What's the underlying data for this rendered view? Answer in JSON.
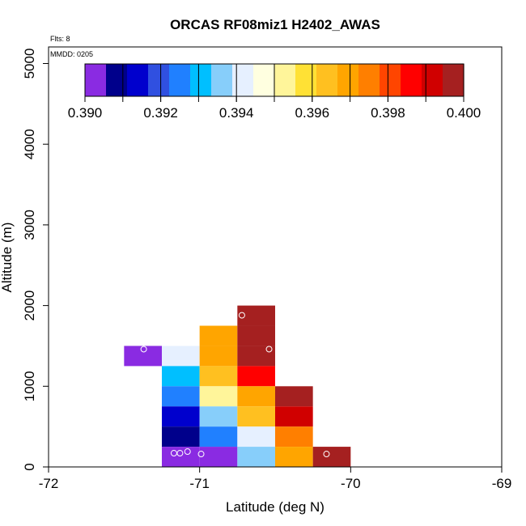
{
  "chart_data": {
    "type": "heatmap",
    "title": "ORCAS RF08miz1 H2402_AWAS",
    "annotation_flts": "Flts: 8",
    "annotation_mmdd": "MMDD: 0205",
    "xlabel": "Latitude (deg N)",
    "ylabel": "Altitude (m)",
    "xlim": [
      -72,
      -69
    ],
    "ylim": [
      0,
      5200
    ],
    "x_ticks": [
      -72,
      -71,
      -70,
      -69
    ],
    "x_tick_labels": [
      "-72",
      "-71",
      "-70",
      "-69"
    ],
    "y_ticks": [
      0,
      1000,
      2000,
      3000,
      4000,
      5000
    ],
    "y_tick_labels": [
      "0",
      "1000",
      "2000",
      "3000",
      "4000",
      "5000"
    ],
    "colorbar": {
      "min": 0.39,
      "max": 0.4,
      "tick_values": [
        0.39,
        0.392,
        0.394,
        0.396,
        0.398,
        0.4
      ],
      "tick_labels": [
        "0.390",
        "0.392",
        "0.394",
        "0.396",
        "0.398",
        "0.400"
      ],
      "colors": [
        "#8A2BE2",
        "#00008B",
        "#0000CD",
        "#3050E0",
        "#2080FF",
        "#00BFFF",
        "#87CEFA",
        "#E6F0FF",
        "#FFFFE0",
        "#FFF59A",
        "#FFE135",
        "#FFC020",
        "#FFA500",
        "#FF7F00",
        "#FF4500",
        "#FF0000",
        "#D00000",
        "#A52020"
      ]
    },
    "cell_width_deg": 0.25,
    "cell_height_m": 250,
    "cells": [
      {
        "lat": -71.5,
        "alt": 1250,
        "value": 0.3903
      },
      {
        "lat": -71.25,
        "alt": 1250,
        "value": 0.3939
      },
      {
        "lat": -71.25,
        "alt": 1000,
        "value": 0.3931
      },
      {
        "lat": -71.25,
        "alt": 750,
        "value": 0.3924
      },
      {
        "lat": -71.25,
        "alt": 500,
        "value": 0.3914
      },
      {
        "lat": -71.25,
        "alt": 250,
        "value": 0.3907
      },
      {
        "lat": -71.25,
        "alt": 0,
        "value": 0.3903
      },
      {
        "lat": -71.0,
        "alt": 1500,
        "value": 0.3967
      },
      {
        "lat": -71.0,
        "alt": 1250,
        "value": 0.3967
      },
      {
        "lat": -71.0,
        "alt": 1000,
        "value": 0.3962
      },
      {
        "lat": -71.0,
        "alt": 750,
        "value": 0.3953
      },
      {
        "lat": -71.0,
        "alt": 500,
        "value": 0.3938
      },
      {
        "lat": -71.0,
        "alt": 250,
        "value": 0.3924
      },
      {
        "lat": -71.0,
        "alt": 0,
        "value": 0.3903
      },
      {
        "lat": -70.75,
        "alt": 1750,
        "value": 0.3997
      },
      {
        "lat": -70.75,
        "alt": 1500,
        "value": 0.3997
      },
      {
        "lat": -70.75,
        "alt": 1250,
        "value": 0.3997
      },
      {
        "lat": -70.75,
        "alt": 1000,
        "value": 0.3988
      },
      {
        "lat": -70.75,
        "alt": 750,
        "value": 0.3972
      },
      {
        "lat": -70.75,
        "alt": 500,
        "value": 0.3962
      },
      {
        "lat": -70.75,
        "alt": 250,
        "value": 0.3944
      },
      {
        "lat": -70.75,
        "alt": 0,
        "value": 0.3938
      },
      {
        "lat": -70.5,
        "alt": 750,
        "value": 0.3997
      },
      {
        "lat": -70.5,
        "alt": 500,
        "value": 0.3992
      },
      {
        "lat": -70.5,
        "alt": 250,
        "value": 0.3977
      },
      {
        "lat": -70.5,
        "alt": 0,
        "value": 0.3967
      },
      {
        "lat": -70.25,
        "alt": 0,
        "value": 0.3997
      }
    ],
    "samples": [
      {
        "lat": -71.37,
        "alt": 1460
      },
      {
        "lat": -70.72,
        "alt": 1880
      },
      {
        "lat": -70.54,
        "alt": 1460
      },
      {
        "lat": -71.17,
        "alt": 170
      },
      {
        "lat": -71.13,
        "alt": 170
      },
      {
        "lat": -71.08,
        "alt": 190
      },
      {
        "lat": -70.99,
        "alt": 160
      },
      {
        "lat": -70.16,
        "alt": 160
      }
    ]
  }
}
